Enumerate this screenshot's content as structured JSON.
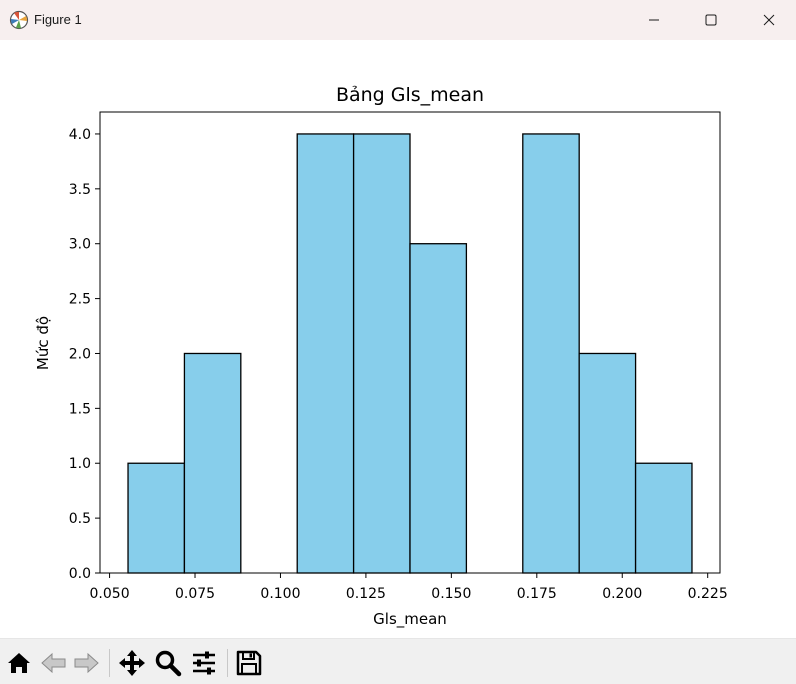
{
  "window": {
    "title": "Figure 1",
    "app_icon": "matplotlib-icon",
    "controls": [
      "minimize-icon",
      "maximize-icon",
      "close-icon"
    ]
  },
  "toolbar": {
    "tools": [
      "home-icon",
      "back-arrow-icon",
      "forward-arrow-icon",
      "pan-icon",
      "zoom-icon",
      "configure-subplots-icon",
      "save-icon"
    ]
  },
  "colors": {
    "bar_fill": "#87ceeb",
    "bar_edge": "#000000",
    "titlebar": "#f7efef",
    "toolbar": "#f0f0f0"
  },
  "chart_data": {
    "type": "bar",
    "title": "Bảng Gls_mean",
    "xlabel": "Gls_mean",
    "ylabel": "Mức độ",
    "bin_edges": [
      0.0554,
      0.0719,
      0.0884,
      0.1049,
      0.1214,
      0.1379,
      0.1544,
      0.1709,
      0.1874,
      0.2039,
      0.2204
    ],
    "values": [
      1,
      2,
      0,
      4,
      4,
      3,
      0,
      4,
      2,
      1
    ],
    "xlim": [
      0.0472,
      0.2286
    ],
    "ylim": [
      0,
      4.2
    ],
    "xticks": [
      0.05,
      0.075,
      0.1,
      0.125,
      0.15,
      0.175,
      0.2,
      0.225
    ],
    "xtick_labels": [
      "0.050",
      "0.075",
      "0.100",
      "0.125",
      "0.150",
      "0.175",
      "0.200",
      "0.225"
    ],
    "yticks": [
      0,
      0.5,
      1,
      1.5,
      2,
      2.5,
      3,
      3.5,
      4
    ],
    "ytick_labels": [
      "0.0",
      "0.5",
      "1.0",
      "1.5",
      "2.0",
      "2.5",
      "3.0",
      "3.5",
      "4.0"
    ],
    "grid": false,
    "legend": "none"
  }
}
